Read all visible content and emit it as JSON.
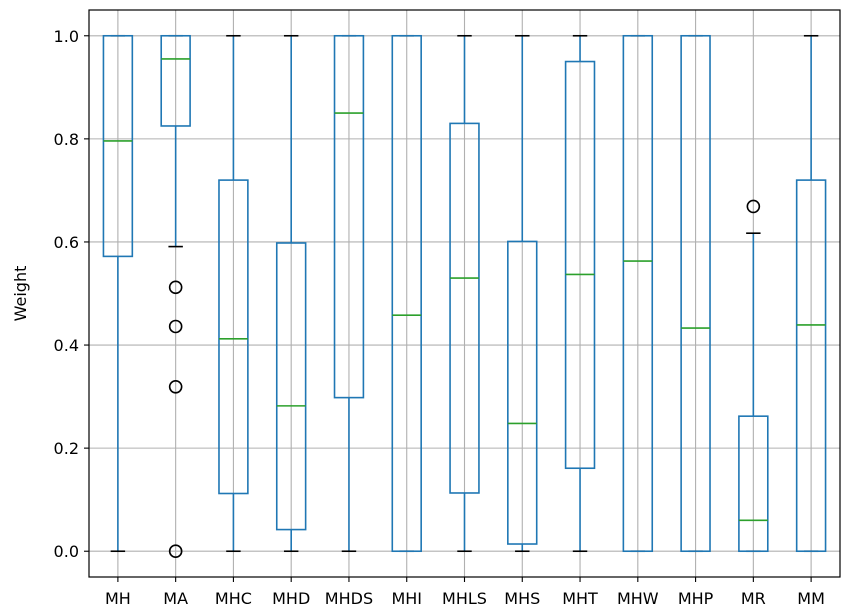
{
  "chart_data": {
    "type": "box",
    "title": "",
    "xlabel": "",
    "ylabel": "Weight",
    "ylim": [
      -0.05,
      1.05
    ],
    "yticks": [
      0.0,
      0.2,
      0.4,
      0.6,
      0.8,
      1.0
    ],
    "ytick_labels": [
      "0.0",
      "0.2",
      "0.4",
      "0.6",
      "0.8",
      "1.0"
    ],
    "grid": true,
    "colors": {
      "box": "#1f77b4",
      "median": "#2ca02c",
      "whisker": "#1f77b4",
      "cap": "#000000",
      "flier": "#000000",
      "grid": "#b0b0b0"
    },
    "categories": [
      "MH",
      "MA",
      "MHC",
      "MHD",
      "MHDS",
      "MHI",
      "MHLS",
      "MHS",
      "MHT",
      "MHW",
      "MHP",
      "MR",
      "MM"
    ],
    "boxes": [
      {
        "label": "MH",
        "whislo": 0.0,
        "q1": 0.572,
        "med": 0.796,
        "q3": 1.0,
        "whishi": 1.0,
        "fliers": []
      },
      {
        "label": "MA",
        "whislo": 0.591,
        "q1": 0.825,
        "med": 0.955,
        "q3": 1.0,
        "whishi": 1.0,
        "fliers": [
          0.512,
          0.436,
          0.319,
          0.0
        ]
      },
      {
        "label": "MHC",
        "whislo": 0.0,
        "q1": 0.112,
        "med": 0.412,
        "q3": 0.72,
        "whishi": 1.0,
        "fliers": []
      },
      {
        "label": "MHD",
        "whislo": 0.0,
        "q1": 0.042,
        "med": 0.282,
        "q3": 0.598,
        "whishi": 1.0,
        "fliers": []
      },
      {
        "label": "MHDS",
        "whislo": 0.0,
        "q1": 0.298,
        "med": 0.85,
        "q3": 1.0,
        "whishi": 1.0,
        "fliers": []
      },
      {
        "label": "MHI",
        "whislo": 0.0,
        "q1": 0.0,
        "med": 0.458,
        "q3": 1.0,
        "whishi": 1.0,
        "fliers": []
      },
      {
        "label": "MHLS",
        "whislo": 0.0,
        "q1": 0.113,
        "med": 0.53,
        "q3": 0.83,
        "whishi": 1.0,
        "fliers": []
      },
      {
        "label": "MHS",
        "whislo": 0.0,
        "q1": 0.014,
        "med": 0.248,
        "q3": 0.601,
        "whishi": 1.0,
        "fliers": []
      },
      {
        "label": "MHT",
        "whislo": 0.0,
        "q1": 0.161,
        "med": 0.537,
        "q3": 0.95,
        "whishi": 1.0,
        "fliers": []
      },
      {
        "label": "MHW",
        "whislo": 0.0,
        "q1": 0.0,
        "med": 0.563,
        "q3": 1.0,
        "whishi": 1.0,
        "fliers": []
      },
      {
        "label": "MHP",
        "whislo": 0.0,
        "q1": 0.0,
        "med": 0.433,
        "q3": 1.0,
        "whishi": 1.0,
        "fliers": []
      },
      {
        "label": "MR",
        "whislo": 0.0,
        "q1": 0.0,
        "med": 0.06,
        "q3": 0.262,
        "whishi": 0.617,
        "fliers": [
          0.669
        ]
      },
      {
        "label": "MM",
        "whislo": 0.0,
        "q1": 0.0,
        "med": 0.439,
        "q3": 0.72,
        "whishi": 1.0,
        "fliers": []
      }
    ]
  }
}
